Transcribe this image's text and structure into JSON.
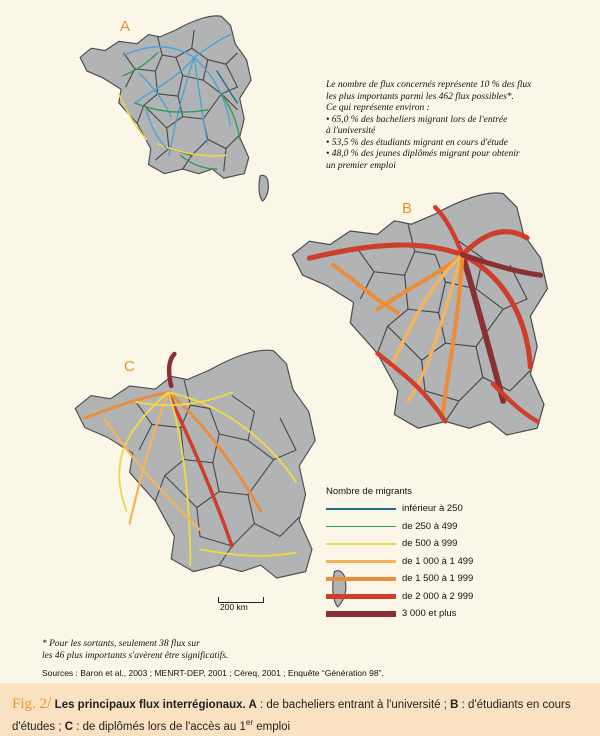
{
  "panels": {
    "a": {
      "label": "A"
    },
    "b": {
      "label": "B"
    },
    "c": {
      "label": "C"
    }
  },
  "note_a": {
    "lines": [
      "Le nombre de flux concernés représente 10 % des flux",
      "les plus importants parmi les 462 flux possibles*.",
      "Ce qui représente environ :",
      "• 65,0 % des bacheliers migrant lors de l'entrée",
      "  à l'université",
      "• 53,5 % des étudiants migrant en cours d'étude",
      "• 48,0 % des jeunes diplômés migrant pour obtenir",
      "  un premier emploi"
    ]
  },
  "legend": {
    "title": "Nombre de migrants",
    "items": [
      {
        "label": "inférieur à 250",
        "color": "#1f6f8b",
        "width": 1.2
      },
      {
        "label": "de 250 à 499",
        "color": "#2e9a5a",
        "width": 1.2
      },
      {
        "label": "de 500 à 999",
        "color": "#ecd94a",
        "width": 1.6
      },
      {
        "label": "de 1 000 à 1 499",
        "color": "#f5b35c",
        "width": 3.5
      },
      {
        "label": "de 1 500 à 1 999",
        "color": "#ec8d3a",
        "width": 4.5
      },
      {
        "label": "de 2 000 à 2 999",
        "color": "#cf3d2b",
        "width": 5.5
      },
      {
        "label": "3 000 et plus",
        "color": "#8a3034",
        "width": 6.5
      }
    ]
  },
  "scale": {
    "label": "200 km"
  },
  "footnote": {
    "line1": "* Pour les sortants, seulement 38 flux sur",
    "line2": "les 46  plus importants s'avèrent être significatifs."
  },
  "sources": "Sources : Baron et al., 2003 ; MENRT-DEP, 2001 ; Céreq, 2001 ; Enquête “Génération 98”.",
  "caption": {
    "fig_label": "Fig. 2",
    "slash": "/",
    "title": " Les principaux flux interrégionaux. ",
    "a_key": "A",
    "a_text": " : de bacheliers entrant à l'université ; ",
    "b_key": "B",
    "b_text": " : d'étudiants en cours d'études ; ",
    "c_key": "C",
    "c_text": " : de diplômés lors de l'accès au 1",
    "sup": "er",
    "end_text": " emploi"
  },
  "colors": {
    "land": "#b1b3b4",
    "border": "#4a4a4a",
    "accent": "#e7932b",
    "caption_bg": "#fae1c2",
    "background": "#fbf7e8"
  }
}
